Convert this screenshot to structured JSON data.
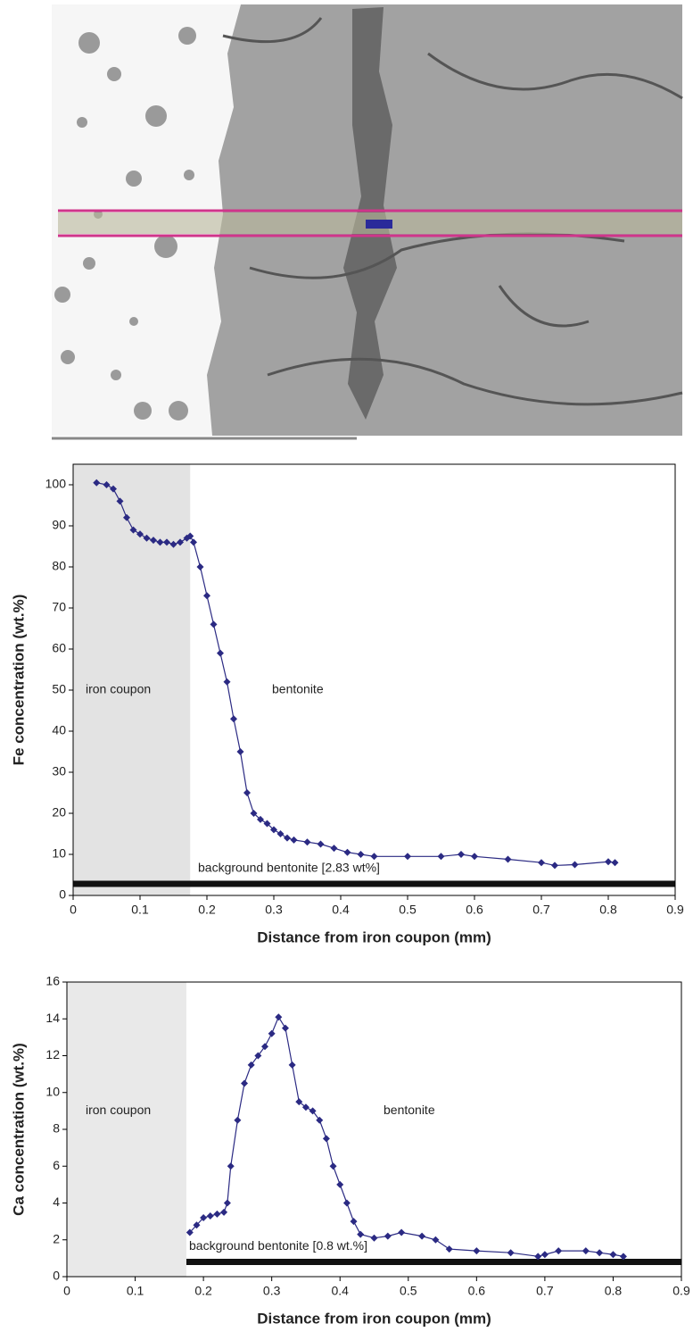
{
  "chart_data": [
    {
      "type": "line",
      "ylabel": "Fe concentration (wt.%)",
      "xlabel": "Distance from iron coupon (mm)",
      "xlim": [
        0,
        0.9
      ],
      "ylim": [
        0,
        105
      ],
      "xticks": [
        0,
        0.1,
        0.2,
        0.3,
        0.4,
        0.5,
        0.6,
        0.7,
        0.8,
        0.9
      ],
      "yticks": [
        0,
        10,
        20,
        30,
        40,
        50,
        60,
        70,
        80,
        90,
        100
      ],
      "shaded_region": {
        "x": [
          0,
          0.175
        ],
        "label": "iron coupon",
        "color": "#e3e3e3"
      },
      "annotations": [
        "bentonite"
      ],
      "background": {
        "value": 2.83,
        "x": [
          0,
          0.9
        ],
        "label": "background bentonite [2.83 wt%]",
        "color": "#111111"
      },
      "series": [
        {
          "color": "#2b2a83",
          "x": [
            0.035,
            0.05,
            0.06,
            0.07,
            0.08,
            0.09,
            0.1,
            0.11,
            0.12,
            0.13,
            0.14,
            0.15,
            0.16,
            0.17,
            0.175,
            0.18,
            0.19,
            0.2,
            0.21,
            0.22,
            0.23,
            0.24,
            0.25,
            0.26,
            0.27,
            0.28,
            0.29,
            0.3,
            0.31,
            0.32,
            0.33,
            0.35,
            0.37,
            0.39,
            0.41,
            0.43,
            0.45,
            0.5,
            0.55,
            0.58,
            0.6,
            0.65,
            0.7,
            0.72,
            0.75,
            0.8,
            0.81
          ],
          "values": [
            100.5,
            100,
            99,
            96,
            92,
            89,
            88,
            87,
            86.5,
            86,
            86,
            85.5,
            86,
            87,
            87.5,
            86,
            80,
            73,
            66,
            59,
            52,
            43,
            35,
            25,
            20,
            18.5,
            17.5,
            16,
            15,
            14,
            13.5,
            13,
            12.5,
            11.5,
            10.5,
            10,
            9.5,
            9.5,
            9.5,
            10,
            9.5,
            8.8,
            8,
            7.3,
            7.5,
            8.2,
            8
          ]
        }
      ]
    },
    {
      "type": "line",
      "ylabel": "Ca concentration (wt.%)",
      "xlabel": "Distance from iron coupon (mm)",
      "xlim": [
        0,
        0.9
      ],
      "ylim": [
        0,
        16
      ],
      "xticks": [
        0,
        0.1,
        0.2,
        0.3,
        0.4,
        0.5,
        0.6,
        0.7,
        0.8,
        0.9
      ],
      "yticks": [
        0,
        2,
        4,
        6,
        8,
        10,
        12,
        14,
        16
      ],
      "shaded_region": {
        "x": [
          0,
          0.175
        ],
        "label": "iron coupon",
        "color": "#e9e9e9"
      },
      "annotations": [
        "bentonite"
      ],
      "background": {
        "value": 0.8,
        "x": [
          0.175,
          0.9
        ],
        "label": "background bentonite [0.8 wt.%]",
        "color": "#111111"
      },
      "series": [
        {
          "color": "#2b2a83",
          "x": [
            0.18,
            0.19,
            0.2,
            0.21,
            0.22,
            0.23,
            0.235,
            0.24,
            0.25,
            0.26,
            0.27,
            0.28,
            0.29,
            0.3,
            0.31,
            0.32,
            0.33,
            0.34,
            0.35,
            0.36,
            0.37,
            0.38,
            0.39,
            0.4,
            0.41,
            0.42,
            0.43,
            0.45,
            0.47,
            0.49,
            0.52,
            0.54,
            0.56,
            0.6,
            0.65,
            0.69,
            0.7,
            0.72,
            0.76,
            0.78,
            0.8,
            0.815
          ],
          "values": [
            2.4,
            2.8,
            3.2,
            3.3,
            3.4,
            3.5,
            4,
            6,
            8.5,
            10.5,
            11.5,
            12,
            12.5,
            13.2,
            14.1,
            13.5,
            11.5,
            9.5,
            9.2,
            9,
            8.5,
            7.5,
            6,
            5,
            4,
            3,
            2.3,
            2.1,
            2.2,
            2.4,
            2.2,
            2,
            1.5,
            1.4,
            1.3,
            1.1,
            1.2,
            1.4,
            1.4,
            1.3,
            1.2,
            1.1
          ]
        }
      ]
    }
  ]
}
